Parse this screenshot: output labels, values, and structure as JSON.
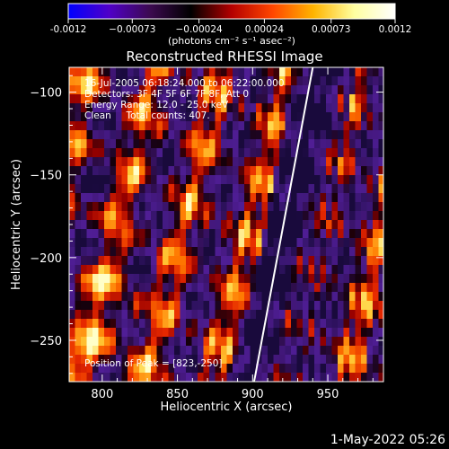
{
  "chart_data": {
    "type": "heatmap",
    "title": "Reconstructed RHESSI Image",
    "xlabel": "Heliocentric X (arcsec)",
    "ylabel": "Heliocentric Y (arcsec)",
    "xlim": [
      778,
      987
    ],
    "ylim": [
      -275,
      -85
    ],
    "x_ticks": [
      800,
      850,
      900,
      950
    ],
    "y_ticks": [
      -100,
      -150,
      -200,
      -250
    ],
    "colorbar": {
      "range": [
        -0.0012,
        0.0012
      ],
      "ticks": [
        -0.0012,
        -0.00073,
        -0.00024,
        0.00024,
        0.00073,
        0.0012
      ],
      "tick_labels": [
        "-0.0012",
        "−0.00073",
        "−0.00024",
        "0.00024",
        "0.00073",
        "0.0012"
      ],
      "units": "(photons cm⁻² s⁻¹ asec⁻²)",
      "colormap": [
        "#0000ff",
        "#5000c8",
        "#3c0a50",
        "#000000",
        "#b40000",
        "#ff4600",
        "#ffb400",
        "#ffffa0",
        "#ffffff"
      ]
    },
    "annotations": [
      "16-Jul-2005 06:18:24.000 to 06:22:00.000",
      "Detectors: 3F 4F 5F 6F 7F 8F, Att 0",
      "Energy Range: 12.0 - 25.0 keV",
      "Clean     Total counts: 407."
    ],
    "peak_label": "Position of Peak = [823,-250]",
    "peak": [
      823,
      -250
    ],
    "limb_line": [
      [
        901,
        -275
      ],
      [
        940,
        -85
      ]
    ],
    "timestamp": "1-May-2022 05:26"
  }
}
